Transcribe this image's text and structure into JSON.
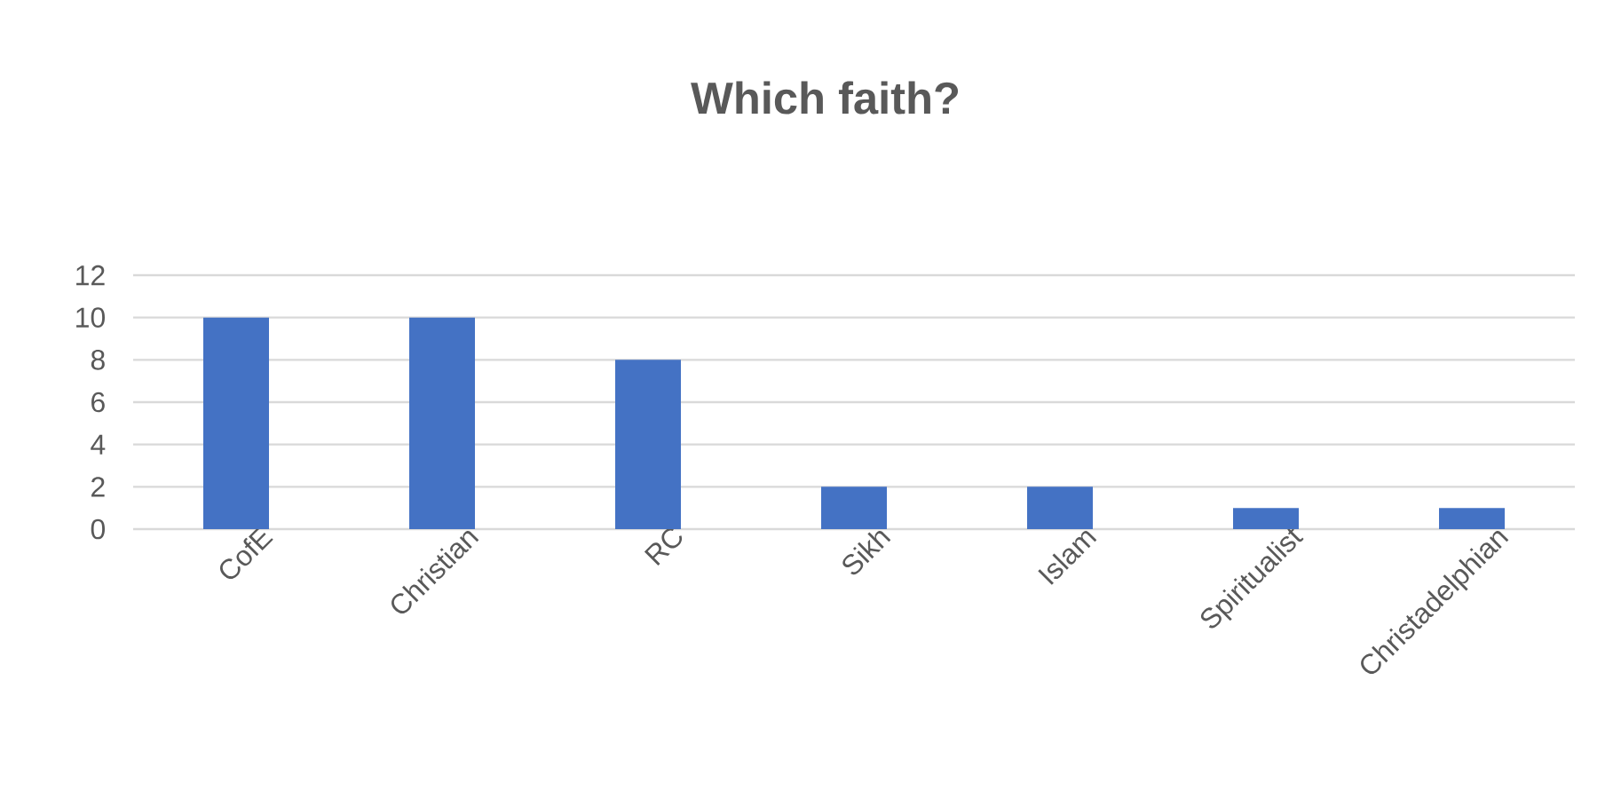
{
  "chart_data": {
    "type": "bar",
    "title": "Which faith?",
    "categories": [
      "CofE",
      "Christian",
      "RC",
      "Sikh",
      "Islam",
      "Spiritualist",
      "Christadelphian"
    ],
    "values": [
      10,
      10,
      8,
      2,
      2,
      1,
      1
    ],
    "color": "#4472c4",
    "ylim": [
      0,
      12
    ],
    "yticks": [
      0,
      2,
      4,
      6,
      8,
      10,
      12
    ],
    "grid": "y"
  }
}
